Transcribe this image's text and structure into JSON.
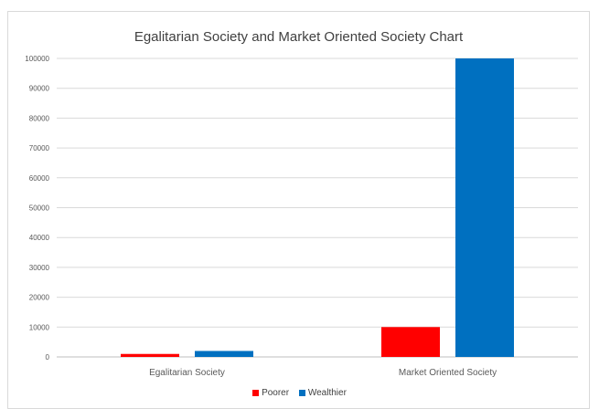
{
  "chart_data": {
    "type": "bar",
    "title": "Egalitarian Society and Market Oriented Society Chart",
    "categories": [
      "Egalitarian Society",
      "Market Oriented Society"
    ],
    "series": [
      {
        "name": "Poorer",
        "values": [
          1000,
          10000
        ],
        "color": "#ff0000"
      },
      {
        "name": "Wealthier",
        "values": [
          2000,
          100000
        ],
        "color": "#0070c0"
      }
    ],
    "ylim": [
      0,
      100000
    ],
    "yticks": [
      "0",
      "10000",
      "20000",
      "30000",
      "40000",
      "50000",
      "60000",
      "70000",
      "80000",
      "90000",
      "100000"
    ],
    "grid": true,
    "legend_position": "bottom"
  }
}
